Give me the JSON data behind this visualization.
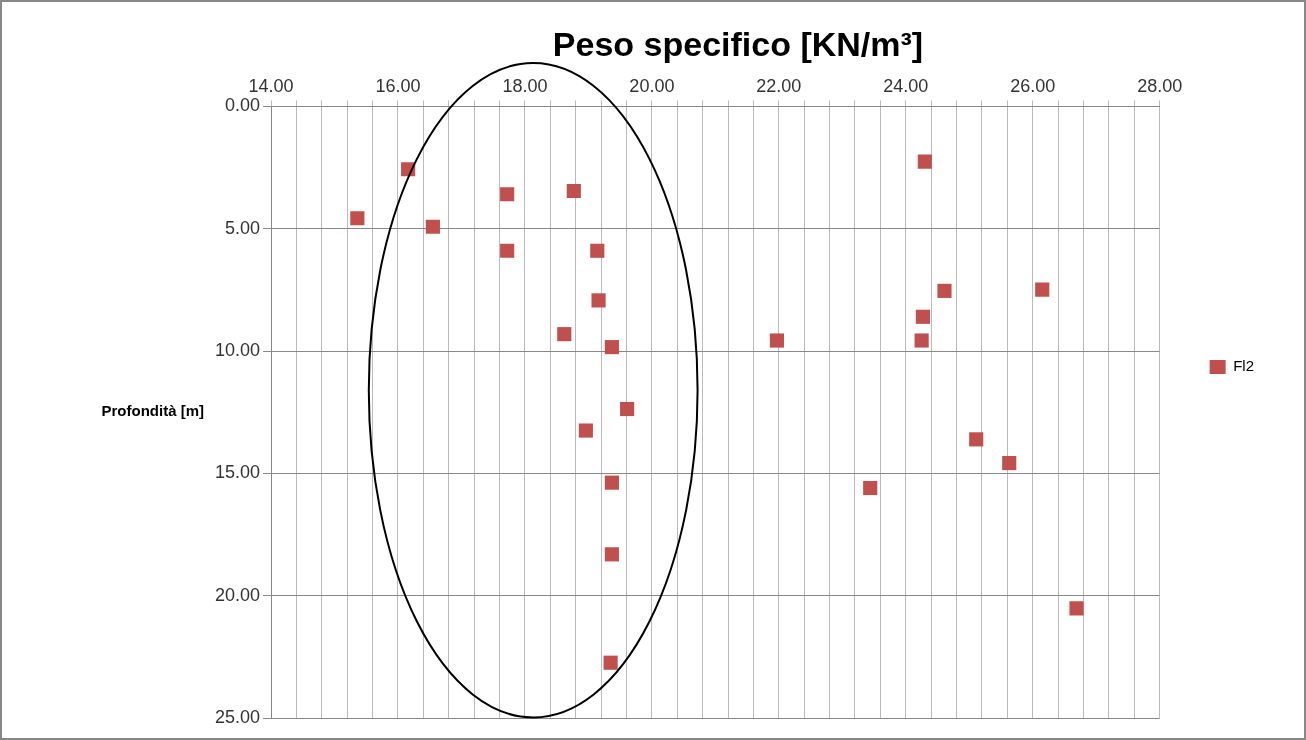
{
  "chart_data": {
    "type": "scatter",
    "title": "Peso specifico [KN/m³]",
    "ylabel": "Profondità [m]",
    "xlim": [
      14,
      28
    ],
    "xticks": [
      {
        "value": 14,
        "label": "14.00"
      },
      {
        "value": 14.4,
        "label": null
      },
      {
        "value": 14.8,
        "label": null
      },
      {
        "value": 15.2,
        "label": null
      },
      {
        "value": 15.6,
        "label": null
      },
      {
        "value": 16,
        "label": "16.00"
      },
      {
        "value": 16.4,
        "label": null
      },
      {
        "value": 16.8,
        "label": null
      },
      {
        "value": 17.2,
        "label": null
      },
      {
        "value": 17.6,
        "label": null
      },
      {
        "value": 18,
        "label": "18.00"
      },
      {
        "value": 18.4,
        "label": null
      },
      {
        "value": 18.8,
        "label": null
      },
      {
        "value": 19.2,
        "label": null
      },
      {
        "value": 19.6,
        "label": null
      },
      {
        "value": 20,
        "label": "20.00"
      },
      {
        "value": 20.4,
        "label": null
      },
      {
        "value": 20.8,
        "label": null
      },
      {
        "value": 21.2,
        "label": null
      },
      {
        "value": 21.6,
        "label": null
      },
      {
        "value": 22,
        "label": "22.00"
      },
      {
        "value": 22.4,
        "label": null
      },
      {
        "value": 22.8,
        "label": null
      },
      {
        "value": 23.2,
        "label": null
      },
      {
        "value": 23.6,
        "label": null
      },
      {
        "value": 24,
        "label": "24.00"
      },
      {
        "value": 24.4,
        "label": null
      },
      {
        "value": 24.8,
        "label": null
      },
      {
        "value": 25.2,
        "label": null
      },
      {
        "value": 25.6,
        "label": null
      },
      {
        "value": 26,
        "label": "26.00"
      },
      {
        "value": 26.4,
        "label": null
      },
      {
        "value": 26.8,
        "label": null
      },
      {
        "value": 27.2,
        "label": null
      },
      {
        "value": 27.6,
        "label": null
      },
      {
        "value": 28,
        "label": "28.00"
      }
    ],
    "ylim": [
      25,
      0
    ],
    "yticks": [
      {
        "value": 0,
        "label": "0.00"
      },
      {
        "value": 5,
        "label": "5.00"
      },
      {
        "value": 10,
        "label": "10.00"
      },
      {
        "value": 15,
        "label": "15.00"
      },
      {
        "value": 20,
        "label": "20.00"
      },
      {
        "value": 25,
        "label": "25.00"
      }
    ],
    "grid": true,
    "legend": "right",
    "marker": "square",
    "series": [
      {
        "name": "Fl2",
        "color": "#c0504d",
        "x": [
          16.16,
          15.36,
          16.55,
          17.72,
          17.72,
          18.77,
          19.14,
          19.16,
          18.62,
          19.37,
          19.61,
          18.96,
          19.37,
          19.37,
          19.35,
          21.97,
          24.3,
          24.27,
          24.25,
          24.61,
          26.15,
          25.11,
          25.63,
          23.44,
          26.69
        ],
        "values": [
          2.57,
          4.57,
          4.92,
          3.59,
          5.9,
          3.46,
          5.9,
          7.93,
          9.31,
          9.84,
          12.37,
          13.25,
          15.38,
          18.31,
          22.74,
          9.57,
          2.26,
          8.6,
          9.57,
          7.54,
          7.49,
          13.61,
          14.58,
          15.6,
          20.52
        ]
      }
    ]
  }
}
